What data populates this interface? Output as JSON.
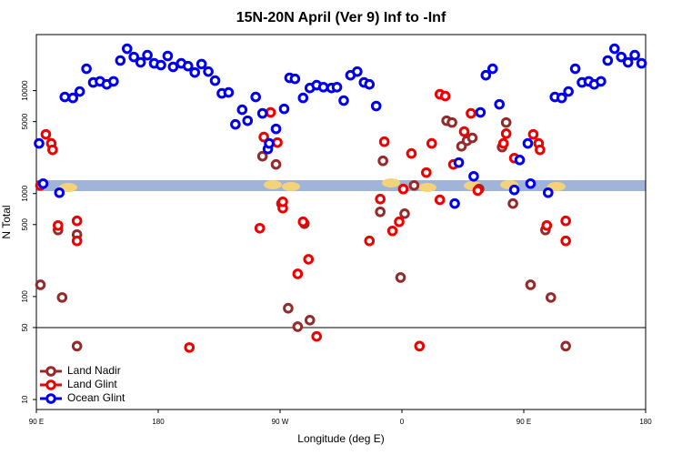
{
  "chart_data": {
    "type": "scatter",
    "title": "15N-20N April (Ver 9)   Inf to -Inf",
    "x_label": "Longitude (deg E)",
    "y_label": "N Total",
    "log_y": true,
    "hline": 50,
    "legend": "bottom-left",
    "xlim": [
      90,
      540
    ],
    "ylim": [
      8,
      35000
    ],
    "xticks": [
      {
        "value": 90,
        "label": "90 E"
      },
      180,
      {
        "value": 270,
        "label": "90 W"
      },
      {
        "value": 360,
        "label": "0"
      },
      {
        "value": 450,
        "label": "90 E"
      },
      {
        "value": 540,
        "label": "180"
      }
    ],
    "yticks": [
      10,
      50,
      100,
      500,
      1000,
      5000,
      10000
    ],
    "series": [
      {
        "name": "Land Nadir",
        "color": "#962a2a",
        "x": [
          93,
          106,
          109,
          120,
          120,
          257,
          267,
          271,
          276,
          283,
          288,
          292,
          346,
          344,
          359,
          362,
          369,
          393,
          397,
          404,
          408,
          412,
          417,
          437,
          434,
          442,
          455,
          466,
          470,
          481
        ],
        "values": [
          130,
          443,
          98,
          400,
          33,
          2305,
          1920,
          800,
          77,
          51,
          510,
          59,
          2080,
          665,
          153,
          638,
          1200,
          5100,
          4900,
          2880,
          3260,
          3470,
          1107,
          4900,
          2830,
          800,
          130,
          443,
          98,
          33
        ]
      },
      {
        "name": "Land Glint",
        "color": "#ee0000",
        "x": [
          93,
          97,
          101,
          102,
          106,
          120,
          120,
          203,
          255,
          258,
          263,
          268,
          272,
          272,
          283,
          287,
          291,
          297,
          336,
          344,
          347,
          353,
          358,
          361,
          367,
          373,
          378,
          382,
          388,
          388,
          392,
          398,
          406,
          411,
          416,
          435,
          437,
          443,
          457,
          461,
          462,
          467,
          481,
          481
        ],
        "values": [
          1200,
          3760,
          3070,
          2660,
          490,
          543,
          347,
          32,
          461,
          3540,
          6140,
          3130,
          722,
          832,
          166,
          532,
          230,
          41,
          347,
          885,
          3190,
          434,
          532,
          1107,
          2450,
          33,
          1600,
          3070,
          870,
          9220,
          8850,
          1920,
          4000,
          6010,
          1070,
          3070,
          3820,
          2210,
          3760,
          3070,
          2660,
          490,
          543,
          347
        ]
      },
      {
        "name": "Ocean Glint",
        "color": "#0000ee",
        "x": [
          92,
          95,
          107,
          111,
          117,
          122,
          127,
          132,
          137,
          142,
          147,
          152,
          157,
          162,
          167,
          172,
          177,
          182,
          187,
          191,
          197,
          202,
          207,
          212,
          217,
          222,
          227,
          232,
          237,
          242,
          246,
          252,
          257,
          261,
          262,
          267,
          273,
          277,
          281,
          287,
          292,
          297,
          302,
          308,
          312,
          317,
          322,
          327,
          332,
          336,
          341,
          399,
          402,
          413,
          418,
          422,
          427,
          432,
          443,
          447,
          453,
          455,
          468,
          473,
          478,
          483,
          488,
          493,
          498,
          502,
          507,
          512,
          517,
          522,
          527,
          532,
          537
        ],
        "values": [
          3070,
          1250,
          1020,
          8670,
          8490,
          9800,
          16300,
          12000,
          12300,
          11500,
          12300,
          19600,
          25500,
          21200,
          18800,
          22100,
          18400,
          17700,
          21700,
          17000,
          18400,
          17300,
          15000,
          18100,
          15300,
          12500,
          9400,
          9600,
          4700,
          6520,
          5100,
          8670,
          6010,
          2710,
          3070,
          4250,
          6650,
          13300,
          13000,
          8490,
          10600,
          11300,
          10800,
          10600,
          10800,
          8000,
          14100,
          15300,
          12000,
          11500,
          7080,
          800,
          2000,
          1470,
          6140,
          14100,
          16300,
          7360,
          1085,
          2120,
          3070,
          1250,
          1020,
          8670,
          8490,
          9800,
          16300,
          12000,
          12300,
          11500,
          12300,
          19600,
          25500,
          21200,
          18800,
          22100,
          18400
        ]
      }
    ]
  }
}
